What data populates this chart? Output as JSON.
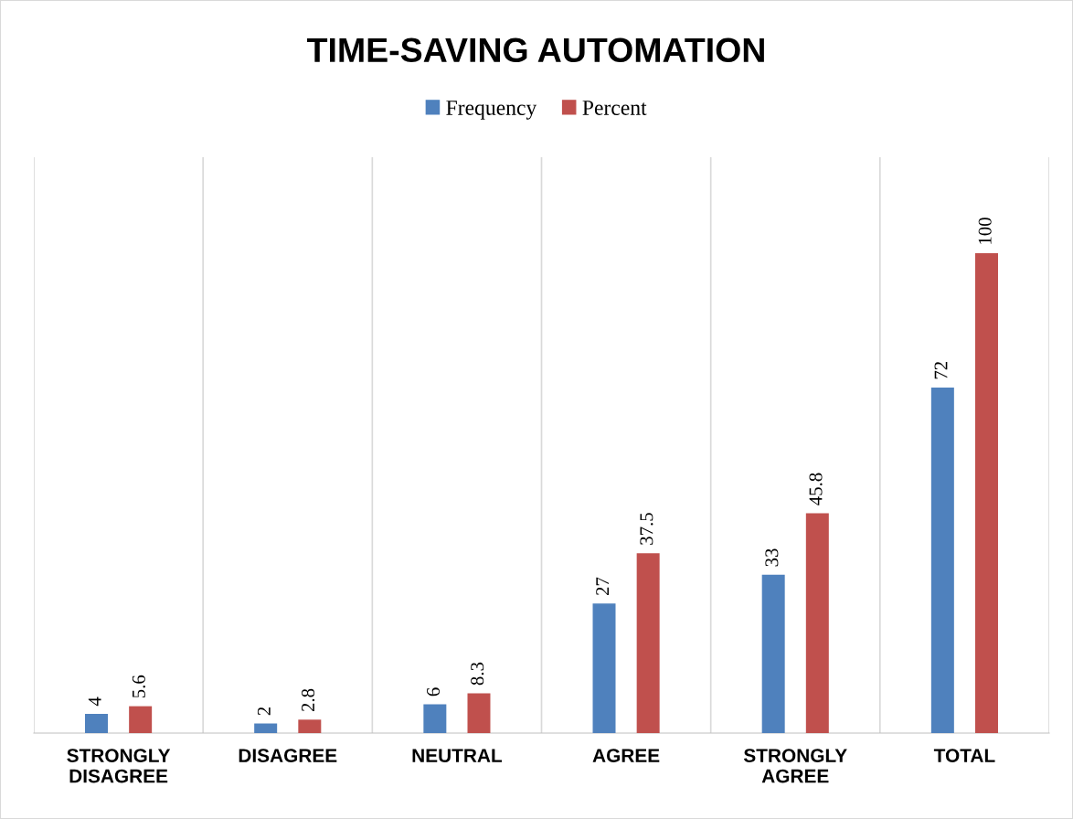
{
  "chart_data": {
    "type": "bar",
    "title": "TIME-SAVING AUTOMATION",
    "categories": [
      "STRONGLY\nDISAGREE",
      "DISAGREE",
      "NEUTRAL",
      "AGREE",
      "STRONGLY\nAGREE",
      "TOTAL"
    ],
    "series": [
      {
        "name": "Frequency",
        "color": "#4f81bd",
        "values": [
          4,
          2,
          6,
          27,
          33,
          72
        ]
      },
      {
        "name": "Percent",
        "color": "#c0504d",
        "values": [
          5.6,
          2.8,
          8.3,
          37.5,
          45.8,
          100
        ]
      }
    ],
    "data_labels": true,
    "grid": "x",
    "legend": "top",
    "tick_labels": "x"
  }
}
